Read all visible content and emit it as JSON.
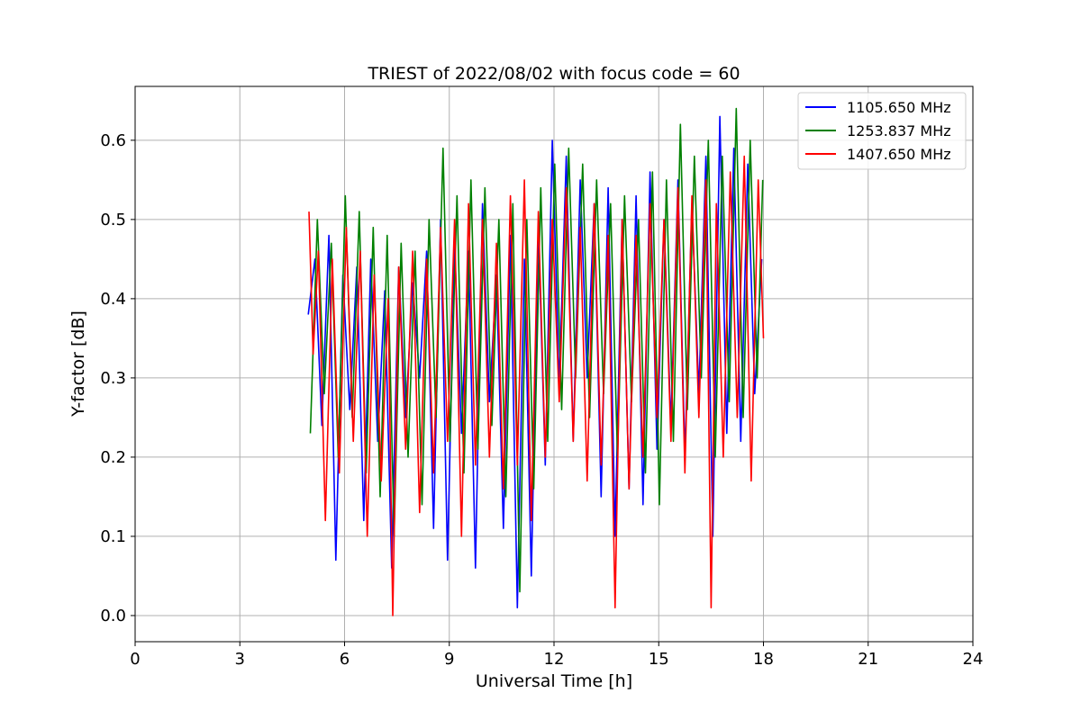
{
  "chart_data": {
    "type": "line",
    "title": "TRIEST of 2022/08/02 with focus code = 60",
    "xlabel": "Universal Time [h]",
    "ylabel": "Y-factor [dB]",
    "xlim": [
      0,
      24
    ],
    "ylim": [
      -0.033,
      0.668
    ],
    "xticks": [
      0,
      3,
      6,
      9,
      12,
      15,
      18,
      21,
      24
    ],
    "xtick_labels": [
      "0",
      "3",
      "6",
      "9",
      "12",
      "15",
      "18",
      "21",
      "24"
    ],
    "yticks": [
      0.0,
      0.1,
      0.2,
      0.3,
      0.4,
      0.5,
      0.6
    ],
    "ytick_labels": [
      "0.0",
      "0.1",
      "0.2",
      "0.3",
      "0.4",
      "0.5",
      "0.6"
    ],
    "grid": true,
    "legend_position": "top-right",
    "series": [
      {
        "name": "1105.650 MHz",
        "color": "#0000ff",
        "x": [
          4.96,
          5.15,
          5.35,
          5.55,
          5.75,
          5.95,
          6.15,
          6.35,
          6.55,
          6.75,
          6.95,
          7.15,
          7.35,
          7.55,
          7.75,
          7.95,
          8.15,
          8.35,
          8.55,
          8.75,
          8.95,
          9.15,
          9.35,
          9.55,
          9.75,
          9.95,
          10.15,
          10.35,
          10.55,
          10.75,
          10.95,
          11.15,
          11.35,
          11.55,
          11.75,
          11.95,
          12.15,
          12.35,
          12.55,
          12.75,
          12.95,
          13.15,
          13.35,
          13.55,
          13.75,
          13.95,
          14.15,
          14.35,
          14.55,
          14.75,
          14.95,
          15.15,
          15.35,
          15.55,
          15.75,
          15.95,
          16.15,
          16.35,
          16.55,
          16.75,
          16.95,
          17.15,
          17.35,
          17.55,
          17.75,
          17.95
        ],
        "y": [
          0.38,
          0.45,
          0.24,
          0.48,
          0.07,
          0.43,
          0.26,
          0.44,
          0.12,
          0.45,
          0.22,
          0.41,
          0.06,
          0.44,
          0.25,
          0.42,
          0.3,
          0.46,
          0.11,
          0.5,
          0.07,
          0.47,
          0.23,
          0.46,
          0.06,
          0.52,
          0.27,
          0.43,
          0.11,
          0.48,
          0.01,
          0.45,
          0.05,
          0.49,
          0.19,
          0.6,
          0.29,
          0.58,
          0.22,
          0.55,
          0.3,
          0.52,
          0.15,
          0.54,
          0.1,
          0.5,
          0.16,
          0.53,
          0.14,
          0.56,
          0.21,
          0.5,
          0.24,
          0.55,
          0.2,
          0.52,
          0.28,
          0.58,
          0.1,
          0.63,
          0.23,
          0.59,
          0.22,
          0.57,
          0.28,
          0.45
        ]
      },
      {
        "name": "1253.837 MHz",
        "color": "#008000",
        "x": [
          5.02,
          5.22,
          5.42,
          5.62,
          5.82,
          6.02,
          6.22,
          6.42,
          6.62,
          6.82,
          7.02,
          7.22,
          7.42,
          7.62,
          7.82,
          8.02,
          8.22,
          8.42,
          8.62,
          8.82,
          9.02,
          9.22,
          9.42,
          9.62,
          9.82,
          10.02,
          10.22,
          10.42,
          10.62,
          10.82,
          11.02,
          11.22,
          11.42,
          11.62,
          11.82,
          12.02,
          12.22,
          12.42,
          12.62,
          12.82,
          13.02,
          13.22,
          13.42,
          13.62,
          13.82,
          14.02,
          14.22,
          14.42,
          14.62,
          14.82,
          15.02,
          15.22,
          15.42,
          15.62,
          15.82,
          16.02,
          16.22,
          16.42,
          16.62,
          16.82,
          17.02,
          17.22,
          17.42,
          17.62,
          17.82,
          17.98
        ],
        "y": [
          0.23,
          0.5,
          0.28,
          0.47,
          0.2,
          0.53,
          0.25,
          0.51,
          0.18,
          0.49,
          0.15,
          0.48,
          0.1,
          0.47,
          0.2,
          0.46,
          0.14,
          0.5,
          0.25,
          0.59,
          0.22,
          0.53,
          0.18,
          0.55,
          0.21,
          0.54,
          0.24,
          0.5,
          0.15,
          0.52,
          0.03,
          0.5,
          0.16,
          0.54,
          0.22,
          0.57,
          0.26,
          0.59,
          0.3,
          0.57,
          0.25,
          0.55,
          0.28,
          0.52,
          0.2,
          0.53,
          0.27,
          0.5,
          0.18,
          0.56,
          0.14,
          0.55,
          0.22,
          0.62,
          0.26,
          0.58,
          0.3,
          0.6,
          0.2,
          0.58,
          0.27,
          0.64,
          0.25,
          0.6,
          0.3,
          0.55
        ]
      },
      {
        "name": "1407.650 MHz",
        "color": "#ff0000",
        "x": [
          4.98,
          5.1,
          5.25,
          5.45,
          5.65,
          5.85,
          6.05,
          6.25,
          6.45,
          6.65,
          6.85,
          7.05,
          7.25,
          7.38,
          7.55,
          7.75,
          7.95,
          8.15,
          8.35,
          8.55,
          8.75,
          8.95,
          9.15,
          9.35,
          9.55,
          9.75,
          9.95,
          10.15,
          10.35,
          10.55,
          10.75,
          10.95,
          11.15,
          11.35,
          11.55,
          11.75,
          11.95,
          12.15,
          12.35,
          12.55,
          12.75,
          12.95,
          13.15,
          13.35,
          13.55,
          13.75,
          13.95,
          14.15,
          14.35,
          14.55,
          14.75,
          14.95,
          15.15,
          15.35,
          15.55,
          15.75,
          15.95,
          16.15,
          16.35,
          16.5,
          16.65,
          16.85,
          17.05,
          17.25,
          17.45,
          17.65,
          17.85,
          18.0
        ],
        "y": [
          0.51,
          0.33,
          0.46,
          0.12,
          0.45,
          0.18,
          0.49,
          0.22,
          0.46,
          0.1,
          0.43,
          0.17,
          0.4,
          0.0,
          0.44,
          0.21,
          0.46,
          0.13,
          0.45,
          0.18,
          0.49,
          0.22,
          0.5,
          0.1,
          0.52,
          0.19,
          0.5,
          0.2,
          0.47,
          0.16,
          0.53,
          0.19,
          0.55,
          0.12,
          0.51,
          0.2,
          0.5,
          0.27,
          0.54,
          0.22,
          0.49,
          0.17,
          0.52,
          0.19,
          0.48,
          0.01,
          0.5,
          0.16,
          0.48,
          0.2,
          0.52,
          0.25,
          0.5,
          0.22,
          0.54,
          0.18,
          0.53,
          0.25,
          0.55,
          0.01,
          0.52,
          0.2,
          0.56,
          0.25,
          0.58,
          0.17,
          0.55,
          0.35
        ]
      }
    ]
  }
}
